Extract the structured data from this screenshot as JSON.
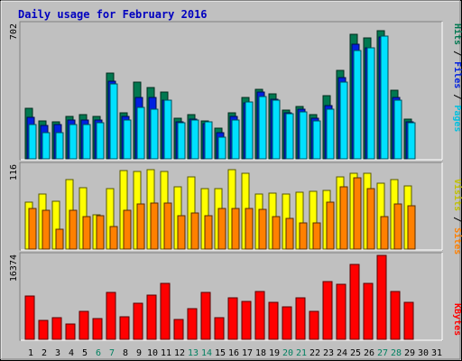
{
  "chart_data": [
    {
      "type": "bar",
      "title": "Daily usage for February 2016",
      "x": [
        "1",
        "2",
        "3",
        "4",
        "5",
        "6",
        "7",
        "8",
        "9",
        "10",
        "11",
        "12",
        "13",
        "14",
        "15",
        "16",
        "17",
        "18",
        "19",
        "20",
        "21",
        "22",
        "23",
        "24",
        "25",
        "26",
        "27",
        "28",
        "29",
        "30",
        "31"
      ],
      "weekend_days": [
        "6",
        "7",
        "13",
        "14",
        "20",
        "21",
        "27",
        "28"
      ],
      "y_max_label": "702",
      "ylim": [
        0,
        702
      ],
      "legend": [
        "Pages",
        "Files",
        "Hits"
      ],
      "series": [
        {
          "name": "Hits",
          "color": "#007850",
          "values": [
            273,
            207,
            200,
            228,
            237,
            230,
            462,
            250,
            415,
            384,
            362,
            218,
            237,
            207,
            164,
            250,
            332,
            373,
            349,
            262,
            284,
            237,
            340,
            480,
            674,
            652,
            693,
            370,
            215,
            0,
            0
          ]
        },
        {
          "name": "Files",
          "color": "#0020e0",
          "values": [
            225,
            180,
            185,
            210,
            210,
            210,
            420,
            230,
            330,
            330,
            315,
            200,
            215,
            190,
            140,
            230,
            300,
            360,
            320,
            250,
            270,
            220,
            290,
            440,
            620,
            600,
            660,
            330,
            200,
            0,
            0
          ]
        },
        {
          "name": "Pages",
          "color": "#00e0ff",
          "values": [
            184,
            143,
            143,
            185,
            185,
            196,
            405,
            212,
            278,
            268,
            318,
            196,
            209,
            201,
            119,
            210,
            306,
            338,
            318,
            242,
            254,
            203,
            268,
            415,
            587,
            600,
            662,
            319,
            196,
            0,
            0
          ]
        }
      ]
    },
    {
      "type": "bar",
      "y_max_label": "116",
      "ylim": [
        0,
        116
      ],
      "legend": [
        "Sites",
        "Visits"
      ],
      "series": [
        {
          "name": "Visits",
          "color": "#ffff00",
          "values": [
            64,
            74,
            65,
            94,
            83,
            47,
            82,
            106,
            105,
            108,
            105,
            84,
            98,
            82,
            82,
            108,
            102,
            75,
            76,
            74,
            77,
            78,
            79,
            98,
            102,
            103,
            89,
            94,
            85,
            0,
            0
          ]
        },
        {
          "name": "Sites",
          "color": "#ff8000",
          "values": [
            55,
            53,
            27,
            52,
            44,
            45,
            31,
            52,
            61,
            62,
            62,
            45,
            49,
            45,
            55,
            55,
            55,
            54,
            44,
            42,
            36,
            35,
            64,
            84,
            96,
            82,
            44,
            61,
            58,
            0,
            0
          ]
        }
      ]
    },
    {
      "type": "bar",
      "y_max_label": "16374",
      "ylim": [
        0,
        16374
      ],
      "legend": [
        "KBytes"
      ],
      "series": [
        {
          "name": "KBytes",
          "color": "#ff0000",
          "values": [
            8480,
            3720,
            4190,
            2950,
            5530,
            4120,
            9120,
            4410,
            7100,
            8630,
            10980,
            3800,
            5900,
            9130,
            4310,
            8180,
            7350,
            9260,
            7260,
            6310,
            8140,
            5420,
            11350,
            10730,
            14580,
            10930,
            16374,
            9310,
            7280,
            0,
            0
          ]
        }
      ]
    }
  ]
}
